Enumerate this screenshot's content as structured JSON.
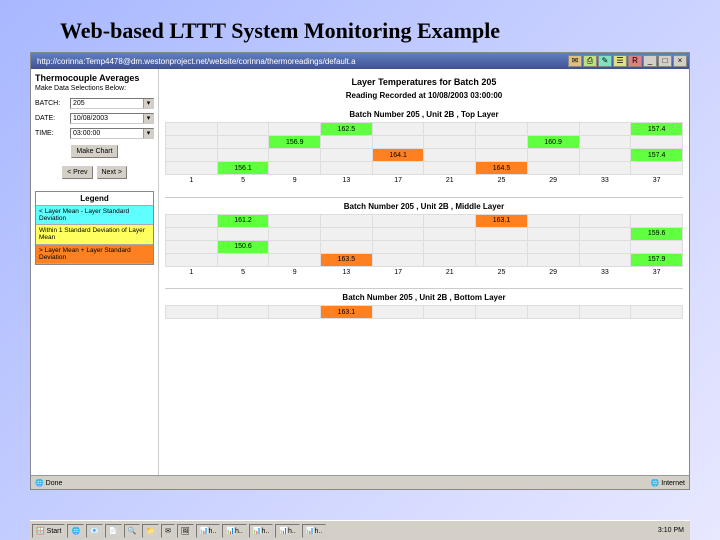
{
  "slide": {
    "title": "Web-based LTTT System Monitoring Example"
  },
  "titlebar": {
    "url": "http://corinna:Temp4478@dm.westonproject.net/website/corinna/thermoreadings/default.a",
    "close": "×"
  },
  "sidebar": {
    "heading": "Thermocouple Averages",
    "subheading": "Make Data Selections Below:",
    "batch_label": "BATCH:",
    "batch_value": "205",
    "date_label": "DATE:",
    "date_value": "10/08/2003",
    "time_label": "TIME:",
    "time_value": "03:00:00",
    "make_chart": "Make Chart",
    "prev": "< Prev",
    "next": "Next >",
    "legend_title": "Legend",
    "legend_items": [
      "< Layer Mean - Layer Standard Deviation",
      "Within 1 Standard Deviation of Layer Mean",
      "> Layer Mean + Layer Standard Deviation"
    ]
  },
  "main": {
    "title": "Layer Temperatures for Batch 205",
    "subtitle": "Reading Recorded at 10/08/2003 03:00:00",
    "top_caption": "Batch Number 205 , Unit 2B , Top Layer",
    "mid_caption": "Batch Number 205 , Unit 2B , Middle Layer",
    "bot_caption": "Batch Number 205 , Unit 2B , Bottom Layer",
    "axis": [
      "1",
      "5",
      "9",
      "13",
      "17",
      "21",
      "25",
      "29",
      "33",
      "37"
    ],
    "top_layer": {
      "row1": [
        "",
        "",
        "",
        "162.5",
        "",
        "",
        "",
        "",
        "",
        "157.4"
      ],
      "row1_colors": [
        "",
        "",
        "",
        "g",
        "",
        "",
        "",
        "",
        "",
        "g"
      ],
      "row2": [
        "",
        "",
        "156.9",
        "",
        "",
        "",
        "",
        "160.9",
        "",
        ""
      ],
      "row2_colors": [
        "",
        "",
        "g",
        "",
        "",
        "",
        "",
        "g",
        "",
        ""
      ],
      "row3": [
        "",
        "",
        "",
        "",
        "164.1",
        "",
        "",
        "",
        "",
        "157.4"
      ],
      "row3_colors": [
        "",
        "",
        "",
        "",
        "o",
        "",
        "",
        "",
        "",
        "g"
      ],
      "row4": [
        "",
        "156.1",
        "",
        "",
        "",
        "",
        "164.5",
        "",
        "",
        ""
      ],
      "row4_colors": [
        "",
        "g",
        "",
        "",
        "",
        "",
        "o",
        "",
        "",
        ""
      ]
    },
    "mid_layer": {
      "row1": [
        "",
        "161.2",
        "",
        "",
        "",
        "",
        "163.1",
        "",
        "",
        ""
      ],
      "row1_colors": [
        "",
        "g",
        "",
        "",
        "",
        "",
        "o",
        "",
        "",
        ""
      ],
      "row2": [
        "",
        "",
        "",
        "",
        "",
        "",
        "",
        "",
        "",
        "159.6"
      ],
      "row2_colors": [
        "",
        "",
        "",
        "",
        "",
        "",
        "",
        "",
        "",
        "g"
      ],
      "row3": [
        "",
        "150.6",
        "",
        "",
        "",
        "",
        "",
        "",
        "",
        ""
      ],
      "row3_colors": [
        "",
        "g",
        "",
        "",
        "",
        "",
        "",
        "",
        "",
        ""
      ],
      "row4": [
        "",
        "",
        "",
        "163.5",
        "",
        "",
        "",
        "",
        "",
        "157.9"
      ],
      "row4_colors": [
        "",
        "",
        "",
        "o",
        "",
        "",
        "",
        "",
        "",
        "g"
      ]
    },
    "bot_layer": {
      "row1": [
        "",
        "",
        "",
        "163.1",
        "",
        "",
        "",
        "",
        "",
        ""
      ],
      "row1_colors": [
        "",
        "",
        "",
        "o",
        "",
        "",
        "",
        "",
        "",
        ""
      ]
    }
  },
  "statusbar": {
    "done": "Done",
    "zone": "Internet"
  },
  "taskbar": {
    "start": "Start",
    "time": "3:10 PM"
  },
  "colors": {
    "green": "#60ff40",
    "orange": "#ff8020",
    "yellow": "#ffff60",
    "cyan": "#60ffff"
  }
}
